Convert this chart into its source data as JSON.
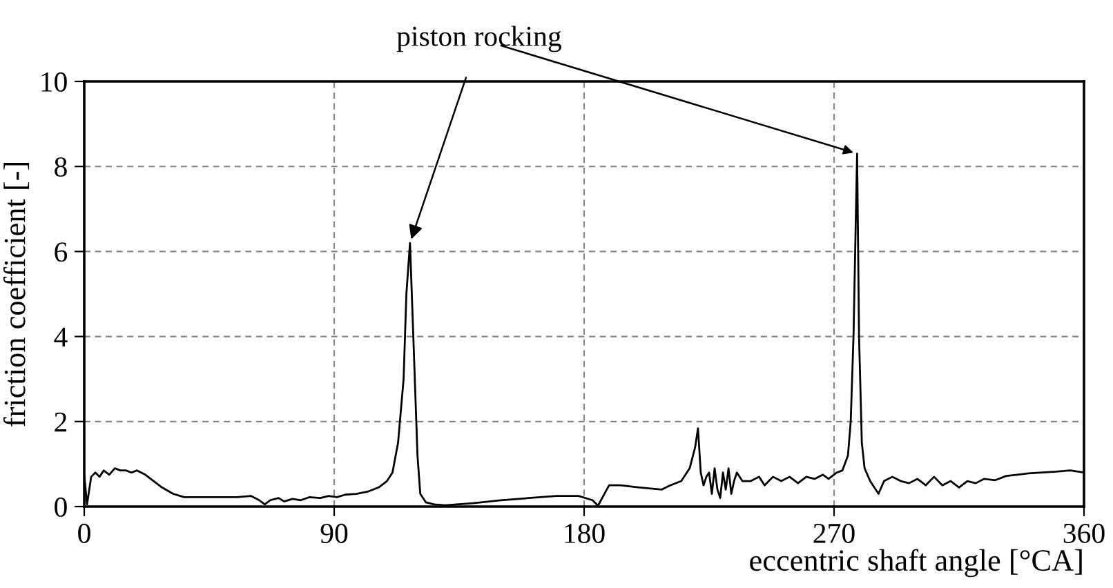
{
  "chart_data": {
    "type": "line",
    "xlabel": "eccentric shaft angle [°CA]",
    "ylabel": "friction coefficient [-]",
    "xlim": [
      0,
      360
    ],
    "xticks": [
      0,
      90,
      180,
      270,
      360
    ],
    "ylim": [
      0,
      10
    ],
    "yticks": [
      0,
      2,
      4,
      6,
      8,
      10
    ],
    "grid": true,
    "line_style": "solid",
    "marker": "none",
    "annotations": [
      {
        "text": "piston rocking",
        "x": 117.3,
        "y": 6.2
      }
    ],
    "series": [
      {
        "color": "#000000",
        "x": [
          0,
          1,
          2.5,
          4,
          5.5,
          7,
          9,
          11,
          13,
          15,
          17,
          19,
          22,
          25,
          28,
          32,
          36,
          45,
          55,
          60,
          63,
          65,
          67,
          70,
          72,
          75,
          78,
          81,
          85,
          88,
          91,
          94,
          98,
          102,
          106,
          109,
          111,
          113,
          115,
          116,
          117.3,
          118.5,
          120,
          121,
          123,
          126,
          130,
          140,
          150,
          160,
          170,
          178,
          183,
          185,
          189,
          193,
          200,
          208,
          211,
          215,
          218,
          220,
          221,
          222,
          223,
          224,
          225,
          226,
          227,
          228,
          229,
          230,
          231,
          232,
          233,
          234,
          235,
          237,
          240,
          243,
          245,
          248,
          251,
          254,
          257,
          260,
          263,
          266,
          268,
          271,
          273,
          275,
          276,
          277,
          278.3,
          279,
          280,
          281,
          283,
          286,
          288,
          291,
          294,
          297,
          300,
          303,
          306,
          309,
          312,
          315,
          318,
          321,
          324,
          328,
          332,
          336,
          340,
          345,
          350,
          355,
          360
        ],
        "values": [
          0.75,
          0.05,
          0.7,
          0.8,
          0.7,
          0.85,
          0.75,
          0.9,
          0.85,
          0.85,
          0.8,
          0.85,
          0.75,
          0.6,
          0.45,
          0.3,
          0.22,
          0.22,
          0.22,
          0.25,
          0.15,
          0.05,
          0.15,
          0.2,
          0.12,
          0.18,
          0.15,
          0.22,
          0.2,
          0.25,
          0.22,
          0.28,
          0.3,
          0.35,
          0.45,
          0.6,
          0.8,
          1.5,
          3.0,
          5.0,
          6.2,
          4.0,
          1.2,
          0.3,
          0.1,
          0.05,
          0.03,
          0.08,
          0.15,
          0.2,
          0.25,
          0.25,
          0.15,
          0.02,
          0.5,
          0.5,
          0.45,
          0.4,
          0.5,
          0.6,
          0.9,
          1.4,
          1.84,
          0.8,
          0.5,
          0.7,
          0.8,
          0.3,
          0.9,
          0.4,
          0.2,
          0.8,
          0.4,
          0.9,
          0.3,
          0.6,
          0.8,
          0.6,
          0.6,
          0.7,
          0.5,
          0.7,
          0.6,
          0.7,
          0.55,
          0.7,
          0.65,
          0.75,
          0.65,
          0.8,
          0.85,
          1.2,
          2.0,
          4.0,
          8.3,
          4.0,
          1.5,
          0.9,
          0.6,
          0.3,
          0.6,
          0.7,
          0.6,
          0.55,
          0.65,
          0.5,
          0.7,
          0.5,
          0.6,
          0.45,
          0.6,
          0.55,
          0.65,
          0.62,
          0.72,
          0.75,
          0.78,
          0.8,
          0.82,
          0.85,
          0.8
        ]
      }
    ]
  }
}
